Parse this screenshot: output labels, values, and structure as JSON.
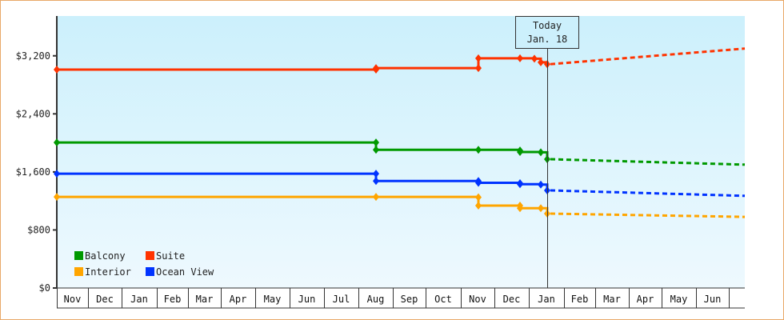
{
  "chart_data": {
    "type": "line",
    "title": "",
    "xlabel": "",
    "ylabel": "",
    "ylim": [
      0,
      3800
    ],
    "yticks": [
      0,
      800,
      1600,
      2400,
      3200
    ],
    "ytick_labels": [
      "$0",
      "$800",
      "$1,600",
      "$2,400",
      "$3,200"
    ],
    "x_months": [
      "Nov",
      "Dec",
      "Jan",
      "Feb",
      "Mar",
      "Apr",
      "May",
      "Jun",
      "Jul",
      "Aug",
      "Sep",
      "Oct",
      "Nov",
      "Dec",
      "Jan",
      "Feb",
      "Mar",
      "Apr",
      "May",
      "Jun"
    ],
    "grid": false,
    "legend_position": "lower-left-inside",
    "annotation": {
      "line1": "Today",
      "line2": "Jan. 18"
    },
    "series": [
      {
        "name": "Balcony",
        "color": "#009900",
        "points": [
          {
            "x": "Nov (start)",
            "y": 2005
          },
          {
            "x": "Aug",
            "y": 2005
          },
          {
            "x": "Aug",
            "y": 1905
          },
          {
            "x": "Nov",
            "y": 1905
          },
          {
            "x": "Dec",
            "y": 1895
          },
          {
            "x": "Dec",
            "y": 1875
          },
          {
            "x": "Jan",
            "y": 1870
          },
          {
            "x": "Jan 18",
            "y": 1775
          }
        ],
        "projection": [
          {
            "x": "Jan 18",
            "y": 1775
          },
          {
            "x": "Jun (end)",
            "y": 1700
          }
        ]
      },
      {
        "name": "Suite",
        "color": "#ff3300",
        "points": [
          {
            "x": "Nov (start)",
            "y": 3010
          },
          {
            "x": "Aug",
            "y": 3010
          },
          {
            "x": "Aug",
            "y": 3030
          },
          {
            "x": "Nov",
            "y": 3030
          },
          {
            "x": "Nov",
            "y": 3165
          },
          {
            "x": "Dec",
            "y": 3165
          },
          {
            "x": "Dec",
            "y": 3160
          },
          {
            "x": "Jan",
            "y": 3110
          },
          {
            "x": "Jan 18",
            "y": 3085
          }
        ],
        "projection": [
          {
            "x": "Jan 18",
            "y": 3085
          },
          {
            "x": "Jun (end)",
            "y": 3300
          }
        ]
      },
      {
        "name": "Interior",
        "color": "#ffa500",
        "points": [
          {
            "x": "Nov (start)",
            "y": 1255
          },
          {
            "x": "Aug",
            "y": 1255
          },
          {
            "x": "Nov",
            "y": 1250
          },
          {
            "x": "Nov",
            "y": 1135
          },
          {
            "x": "Dec",
            "y": 1135
          },
          {
            "x": "Dec",
            "y": 1100
          },
          {
            "x": "Jan",
            "y": 1100
          },
          {
            "x": "Jan 18",
            "y": 1025
          }
        ],
        "projection": [
          {
            "x": "Jan 18",
            "y": 1025
          },
          {
            "x": "Jun (end)",
            "y": 980
          }
        ]
      },
      {
        "name": "Ocean View",
        "color": "#0033ff",
        "points": [
          {
            "x": "Nov (start)",
            "y": 1575
          },
          {
            "x": "Aug",
            "y": 1575
          },
          {
            "x": "Aug",
            "y": 1475
          },
          {
            "x": "Nov",
            "y": 1475
          },
          {
            "x": "Nov",
            "y": 1450
          },
          {
            "x": "Dec",
            "y": 1445
          },
          {
            "x": "Dec",
            "y": 1430
          },
          {
            "x": "Jan",
            "y": 1425
          },
          {
            "x": "Jan 18",
            "y": 1345
          }
        ],
        "projection": [
          {
            "x": "Jan 18",
            "y": 1345
          },
          {
            "x": "Jun (end)",
            "y": 1270
          }
        ]
      }
    ]
  },
  "legend": {
    "items": [
      {
        "label": "Balcony",
        "color": "#009900"
      },
      {
        "label": "Suite",
        "color": "#ff3300"
      },
      {
        "label": "Interior",
        "color": "#ffa500"
      },
      {
        "label": "Ocean View",
        "color": "#0033ff"
      }
    ]
  },
  "today_marker": {
    "line1": "Today",
    "line2": "Jan. 18"
  }
}
